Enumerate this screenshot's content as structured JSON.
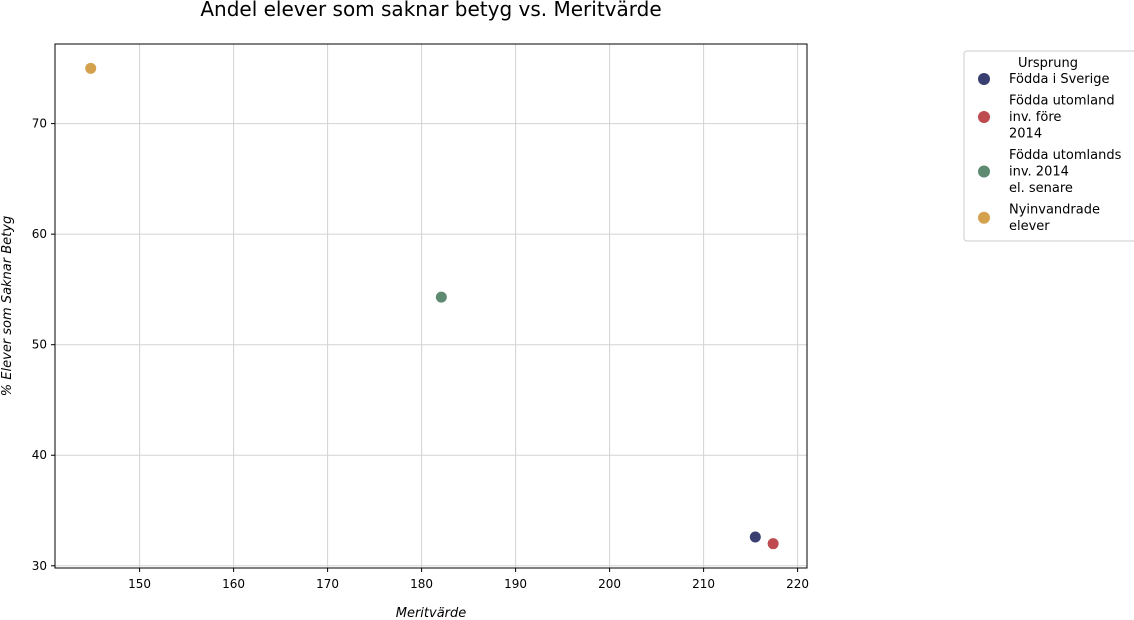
{
  "chart_data": {
    "type": "scatter",
    "title": "Andel elever som saknar betyg vs. Meritvärde",
    "xlabel": "Meritvärde",
    "ylabel": "% Elever som Saknar Betyg",
    "xlim": [
      141,
      221
    ],
    "ylim": [
      29.8,
      77.2
    ],
    "x_ticks": [
      150,
      160,
      170,
      180,
      190,
      200,
      210,
      220
    ],
    "y_ticks": [
      30,
      40,
      50,
      60,
      70
    ],
    "grid": true,
    "legend": {
      "title": "Ursprung",
      "placement": "outside-top-right"
    },
    "series": [
      {
        "name": "Födda i Sverige",
        "legend_lines": [
          "Födda i Sverige"
        ],
        "color": "#3a3f72",
        "points": [
          {
            "x": 215.5,
            "y": 32.6
          }
        ]
      },
      {
        "name": "Födda utomland inv. före 2014",
        "legend_lines": [
          "Födda utomland",
          "inv. före",
          "2014"
        ],
        "color": "#be4b4f",
        "points": [
          {
            "x": 217.4,
            "y": 32.0
          }
        ]
      },
      {
        "name": "Födda utomlands inv. 2014 el. senare",
        "legend_lines": [
          "Födda utomlands",
          "inv. 2014",
          "el. senare"
        ],
        "color": "#5e8a72",
        "points": [
          {
            "x": 182.1,
            "y": 54.3
          }
        ]
      },
      {
        "name": "Nyinvandrade elever",
        "legend_lines": [
          "Nyinvandrade",
          "elever"
        ],
        "color": "#d4a14e",
        "points": [
          {
            "x": 144.8,
            "y": 75.0
          }
        ]
      }
    ]
  }
}
